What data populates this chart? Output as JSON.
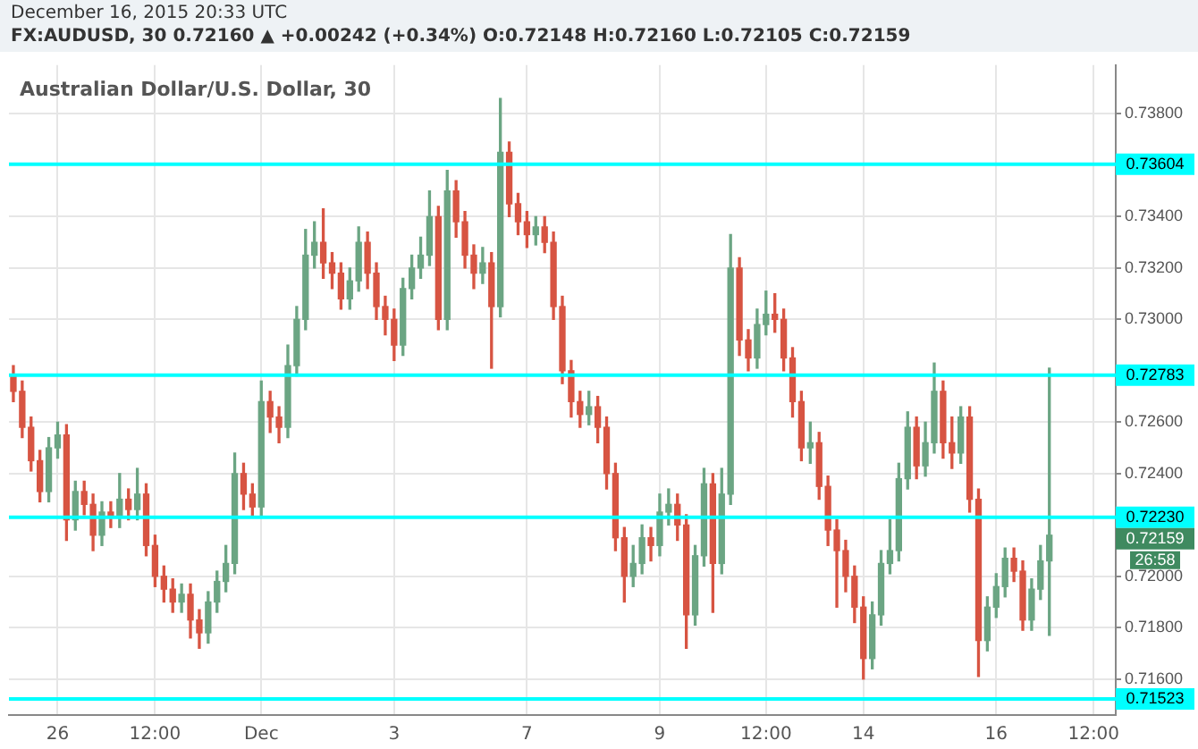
{
  "chart_data": {
    "type": "candlestick",
    "title": "Australian Dollar/U.S. Dollar, 30",
    "subtitle": "FX:AUDUSD, 30  0.72160 ▲ +0.00242 (+0.34%)  O:0.72148  H:0.72160  L:0.72105  C:0.72159",
    "annotations": [
      "December 16, 2015 20:33 UTC",
      "0.72159",
      "26:58"
    ],
    "categories": [
      null,
      null,
      null,
      null,
      null,
      "26",
      null,
      null,
      null,
      null,
      null,
      null,
      null,
      null,
      null,
      null,
      "12:00",
      null,
      null,
      null,
      null,
      null,
      null,
      null,
      null,
      null,
      null,
      null,
      "Dec",
      null,
      null,
      null,
      null,
      null,
      null,
      null,
      null,
      null,
      null,
      null,
      null,
      null,
      null,
      "3",
      null,
      null,
      null,
      null,
      null,
      null,
      null,
      null,
      null,
      null,
      null,
      null,
      null,
      null,
      "7",
      null,
      null,
      null,
      null,
      null,
      null,
      null,
      null,
      null,
      null,
      null,
      null,
      null,
      null,
      "9",
      null,
      null,
      null,
      null,
      null,
      null,
      null,
      null,
      null,
      null,
      null,
      "12:00",
      null,
      null,
      null,
      null,
      null,
      null,
      null,
      null,
      null,
      null,
      "14",
      null,
      null,
      null,
      null,
      null,
      null,
      null,
      null,
      null,
      null,
      null,
      null,
      null,
      null,
      "16",
      null,
      null,
      null,
      null,
      null,
      null,
      null,
      null,
      null,
      null,
      "12:00",
      null,
      null
    ],
    "ohlc": [
      [
        0.7278,
        0.7282,
        0.7268,
        0.7272
      ],
      [
        0.7272,
        0.7276,
        0.7254,
        0.7258
      ],
      [
        0.7258,
        0.7262,
        0.7241,
        0.7245
      ],
      [
        0.7245,
        0.7249,
        0.7229,
        0.7233
      ],
      [
        0.7233,
        0.7254,
        0.7229,
        0.725
      ],
      [
        0.725,
        0.726,
        0.7246,
        0.7255
      ],
      [
        0.7255,
        0.7259,
        0.7214,
        0.7222
      ],
      [
        0.7222,
        0.7237,
        0.7218,
        0.7233
      ],
      [
        0.7233,
        0.7237,
        0.7224,
        0.7228
      ],
      [
        0.7228,
        0.7232,
        0.721,
        0.7216
      ],
      [
        0.7216,
        0.7229,
        0.7212,
        0.7225
      ],
      [
        0.7225,
        0.7229,
        0.7219,
        0.7223
      ],
      [
        0.7223,
        0.724,
        0.7219,
        0.723
      ],
      [
        0.723,
        0.7234,
        0.7222,
        0.7226
      ],
      [
        0.7226,
        0.7242,
        0.7222,
        0.7232
      ],
      [
        0.7232,
        0.7236,
        0.7208,
        0.7212
      ],
      [
        0.7212,
        0.7216,
        0.7196,
        0.72
      ],
      [
        0.72,
        0.7204,
        0.719,
        0.7195
      ],
      [
        0.7195,
        0.7199,
        0.7186,
        0.719
      ],
      [
        0.719,
        0.7197,
        0.7186,
        0.7193
      ],
      [
        0.7193,
        0.7197,
        0.7176,
        0.7183
      ],
      [
        0.7183,
        0.7187,
        0.7172,
        0.7178
      ],
      [
        0.7178,
        0.7194,
        0.7174,
        0.719
      ],
      [
        0.719,
        0.7202,
        0.7186,
        0.7198
      ],
      [
        0.7198,
        0.7212,
        0.7194,
        0.7205
      ],
      [
        0.7205,
        0.7248,
        0.7201,
        0.724
      ],
      [
        0.724,
        0.7244,
        0.7226,
        0.7232
      ],
      [
        0.7232,
        0.7236,
        0.7223,
        0.7227
      ],
      [
        0.7227,
        0.7276,
        0.7223,
        0.7268
      ],
      [
        0.7268,
        0.7272,
        0.7256,
        0.7262
      ],
      [
        0.7262,
        0.7266,
        0.7252,
        0.7258
      ],
      [
        0.7258,
        0.729,
        0.7254,
        0.7282
      ],
      [
        0.7282,
        0.7305,
        0.7278,
        0.73
      ],
      [
        0.73,
        0.7335,
        0.7296,
        0.7325
      ],
      [
        0.7325,
        0.7338,
        0.732,
        0.733
      ],
      [
        0.733,
        0.7343,
        0.7316,
        0.7322
      ],
      [
        0.7322,
        0.7326,
        0.7312,
        0.7318
      ],
      [
        0.7318,
        0.7322,
        0.7304,
        0.7308
      ],
      [
        0.7308,
        0.732,
        0.7304,
        0.7315
      ],
      [
        0.7315,
        0.7336,
        0.7311,
        0.733
      ],
      [
        0.733,
        0.7334,
        0.7312,
        0.7318
      ],
      [
        0.7318,
        0.7322,
        0.73,
        0.7305
      ],
      [
        0.7305,
        0.7309,
        0.7294,
        0.73
      ],
      [
        0.73,
        0.7304,
        0.7284,
        0.729
      ],
      [
        0.729,
        0.7316,
        0.7286,
        0.7312
      ],
      [
        0.7312,
        0.7325,
        0.7308,
        0.732
      ],
      [
        0.732,
        0.7332,
        0.7316,
        0.7325
      ],
      [
        0.7325,
        0.735,
        0.7321,
        0.734
      ],
      [
        0.734,
        0.7344,
        0.7296,
        0.73
      ],
      [
        0.73,
        0.7358,
        0.7296,
        0.735
      ],
      [
        0.735,
        0.7354,
        0.7332,
        0.7338
      ],
      [
        0.7338,
        0.7342,
        0.732,
        0.7325
      ],
      [
        0.7325,
        0.7329,
        0.7312,
        0.7318
      ],
      [
        0.7318,
        0.7328,
        0.7314,
        0.7322
      ],
      [
        0.7322,
        0.7326,
        0.7281,
        0.7305
      ],
      [
        0.7305,
        0.7386,
        0.7301,
        0.7365
      ],
      [
        0.7365,
        0.7369,
        0.734,
        0.7345
      ],
      [
        0.7345,
        0.7349,
        0.7333,
        0.7338
      ],
      [
        0.7338,
        0.7342,
        0.7328,
        0.7333
      ],
      [
        0.7333,
        0.734,
        0.7329,
        0.7336
      ],
      [
        0.7336,
        0.734,
        0.7326,
        0.733
      ],
      [
        0.733,
        0.7334,
        0.73,
        0.7305
      ],
      [
        0.7305,
        0.7309,
        0.7275,
        0.728
      ],
      [
        0.728,
        0.7284,
        0.7262,
        0.7268
      ],
      [
        0.7268,
        0.7272,
        0.7258,
        0.7263
      ],
      [
        0.7263,
        0.7272,
        0.7259,
        0.7266
      ],
      [
        0.7266,
        0.727,
        0.7252,
        0.7258
      ],
      [
        0.7258,
        0.7262,
        0.7234,
        0.724
      ],
      [
        0.724,
        0.7244,
        0.721,
        0.7215
      ],
      [
        0.7215,
        0.7219,
        0.719,
        0.72
      ],
      [
        0.72,
        0.7212,
        0.7196,
        0.7205
      ],
      [
        0.7205,
        0.722,
        0.7201,
        0.7215
      ],
      [
        0.7215,
        0.7219,
        0.7206,
        0.7212
      ],
      [
        0.7212,
        0.7232,
        0.7208,
        0.7225
      ],
      [
        0.7225,
        0.7234,
        0.722,
        0.7228
      ],
      [
        0.7228,
        0.7232,
        0.7214,
        0.722
      ],
      [
        0.722,
        0.7224,
        0.7172,
        0.7185
      ],
      [
        0.7185,
        0.7212,
        0.7181,
        0.7208
      ],
      [
        0.7208,
        0.7242,
        0.7204,
        0.7236
      ],
      [
        0.7236,
        0.724,
        0.7186,
        0.7205
      ],
      [
        0.7205,
        0.7242,
        0.7201,
        0.7232
      ],
      [
        0.7232,
        0.7333,
        0.7228,
        0.732
      ],
      [
        0.732,
        0.7324,
        0.7286,
        0.7292
      ],
      [
        0.7292,
        0.7296,
        0.728,
        0.7285
      ],
      [
        0.7285,
        0.7304,
        0.7281,
        0.7298
      ],
      [
        0.7298,
        0.7311,
        0.7294,
        0.7302
      ],
      [
        0.7302,
        0.731,
        0.7295,
        0.73
      ],
      [
        0.73,
        0.7304,
        0.728,
        0.7285
      ],
      [
        0.7285,
        0.7289,
        0.7262,
        0.7268
      ],
      [
        0.7268,
        0.7272,
        0.7245,
        0.725
      ],
      [
        0.725,
        0.726,
        0.7244,
        0.7252
      ],
      [
        0.7252,
        0.7256,
        0.723,
        0.7235
      ],
      [
        0.7235,
        0.7239,
        0.7212,
        0.7218
      ],
      [
        0.7218,
        0.7222,
        0.7188,
        0.721
      ],
      [
        0.721,
        0.7214,
        0.7194,
        0.72
      ],
      [
        0.72,
        0.7204,
        0.7182,
        0.7188
      ],
      [
        0.7188,
        0.7192,
        0.716,
        0.7168
      ],
      [
        0.7168,
        0.719,
        0.7164,
        0.7185
      ],
      [
        0.7185,
        0.721,
        0.7181,
        0.7205
      ],
      [
        0.7205,
        0.7222,
        0.7201,
        0.721
      ],
      [
        0.721,
        0.7244,
        0.7206,
        0.7238
      ],
      [
        0.7238,
        0.7264,
        0.7234,
        0.7258
      ],
      [
        0.7258,
        0.7262,
        0.7238,
        0.7243
      ],
      [
        0.7243,
        0.726,
        0.7239,
        0.7252
      ],
      [
        0.7252,
        0.7283,
        0.7248,
        0.7272
      ],
      [
        0.7272,
        0.7276,
        0.7246,
        0.7252
      ],
      [
        0.7252,
        0.7262,
        0.7242,
        0.7248
      ],
      [
        0.7248,
        0.7266,
        0.7244,
        0.7262
      ],
      [
        0.7262,
        0.7266,
        0.7225,
        0.723
      ],
      [
        0.723,
        0.7234,
        0.7161,
        0.7175
      ],
      [
        0.7175,
        0.7192,
        0.7171,
        0.7188
      ],
      [
        0.7188,
        0.7201,
        0.7184,
        0.7196
      ],
      [
        0.7196,
        0.7211,
        0.7192,
        0.7207
      ],
      [
        0.7207,
        0.7211,
        0.7198,
        0.7202
      ],
      [
        0.7202,
        0.7206,
        0.7179,
        0.7183
      ],
      [
        0.7183,
        0.7199,
        0.7179,
        0.7195
      ],
      [
        0.7195,
        0.7212,
        0.7191,
        0.7206
      ],
      [
        0.7206,
        0.7281,
        0.7177,
        0.7216
      ],
      null,
      null,
      null,
      null,
      null,
      null,
      null
    ],
    "colors": [
      "#d75442",
      "#d75442",
      "#d75442",
      "#d75442",
      "#6ba583",
      "#6ba583",
      "#d75442",
      "#6ba583",
      "#d75442",
      "#d75442",
      "#6ba583",
      "#d75442",
      "#6ba583",
      "#d75442",
      "#6ba583",
      "#d75442",
      "#d75442",
      "#d75442",
      "#d75442",
      "#6ba583",
      "#d75442",
      "#d75442",
      "#6ba583",
      "#6ba583",
      "#6ba583",
      "#6ba583",
      "#d75442",
      "#d75442",
      "#6ba583",
      "#d75442",
      "#d75442",
      "#6ba583",
      "#6ba583",
      "#6ba583",
      "#6ba583",
      "#d75442",
      "#d75442",
      "#d75442",
      "#6ba583",
      "#6ba583",
      "#d75442",
      "#d75442",
      "#d75442",
      "#d75442",
      "#6ba583",
      "#6ba583",
      "#6ba583",
      "#6ba583",
      "#d75442",
      "#6ba583",
      "#d75442",
      "#d75442",
      "#d75442",
      "#6ba583",
      "#d75442",
      "#6ba583",
      "#d75442",
      "#d75442",
      "#d75442",
      "#6ba583",
      "#d75442",
      "#d75442",
      "#d75442",
      "#d75442",
      "#d75442",
      "#6ba583",
      "#d75442",
      "#d75442",
      "#d75442",
      "#d75442",
      "#6ba583",
      "#6ba583",
      "#d75442",
      "#6ba583",
      "#6ba583",
      "#d75442",
      "#d75442",
      "#6ba583",
      "#6ba583",
      "#d75442",
      "#6ba583",
      "#6ba583",
      "#d75442",
      "#d75442",
      "#6ba583",
      "#6ba583",
      "#d75442",
      "#d75442",
      "#d75442",
      "#d75442",
      "#6ba583",
      "#d75442",
      "#d75442",
      "#d75442",
      "#d75442",
      "#d75442",
      "#d75442",
      "#6ba583",
      "#6ba583",
      "#6ba583",
      "#6ba583",
      "#6ba583",
      "#d75442",
      "#6ba583",
      "#6ba583",
      "#d75442",
      "#d75442",
      "#6ba583",
      "#d75442",
      "#d75442",
      "#6ba583",
      "#6ba583",
      "#6ba583",
      "#d75442",
      "#d75442",
      "#6ba583",
      "#6ba583",
      "#6ba583",
      null,
      null,
      null,
      null,
      null,
      null,
      null
    ],
    "ylim": [
      0.7146,
      0.7399
    ],
    "yticks": [
      {
        "value": 0.716,
        "label": "0.71600"
      },
      {
        "value": 0.718,
        "label": "0.71800"
      },
      {
        "value": 0.72,
        "label": "0.72000"
      },
      {
        "value": 0.724,
        "label": "0.72400"
      },
      {
        "value": 0.726,
        "label": "0.72600"
      },
      {
        "value": 0.73,
        "label": "0.73000"
      },
      {
        "value": 0.732,
        "label": "0.73200"
      },
      {
        "value": 0.734,
        "label": "0.73400"
      },
      {
        "value": 0.738,
        "label": "0.73800"
      }
    ],
    "ref_lines": [
      {
        "axis": "y",
        "value": 0.73604,
        "label": "0.73604",
        "color": "#00ffff"
      },
      {
        "axis": "y",
        "value": 0.72783,
        "label": "0.72783",
        "color": "#00ffff"
      },
      {
        "axis": "y",
        "value": 0.7223,
        "label": "0.72230",
        "color": "#00ffff"
      },
      {
        "axis": "y",
        "value": 0.71523,
        "label": "0.71523",
        "color": "#00ffff"
      }
    ],
    "grid": true,
    "legend": false
  }
}
